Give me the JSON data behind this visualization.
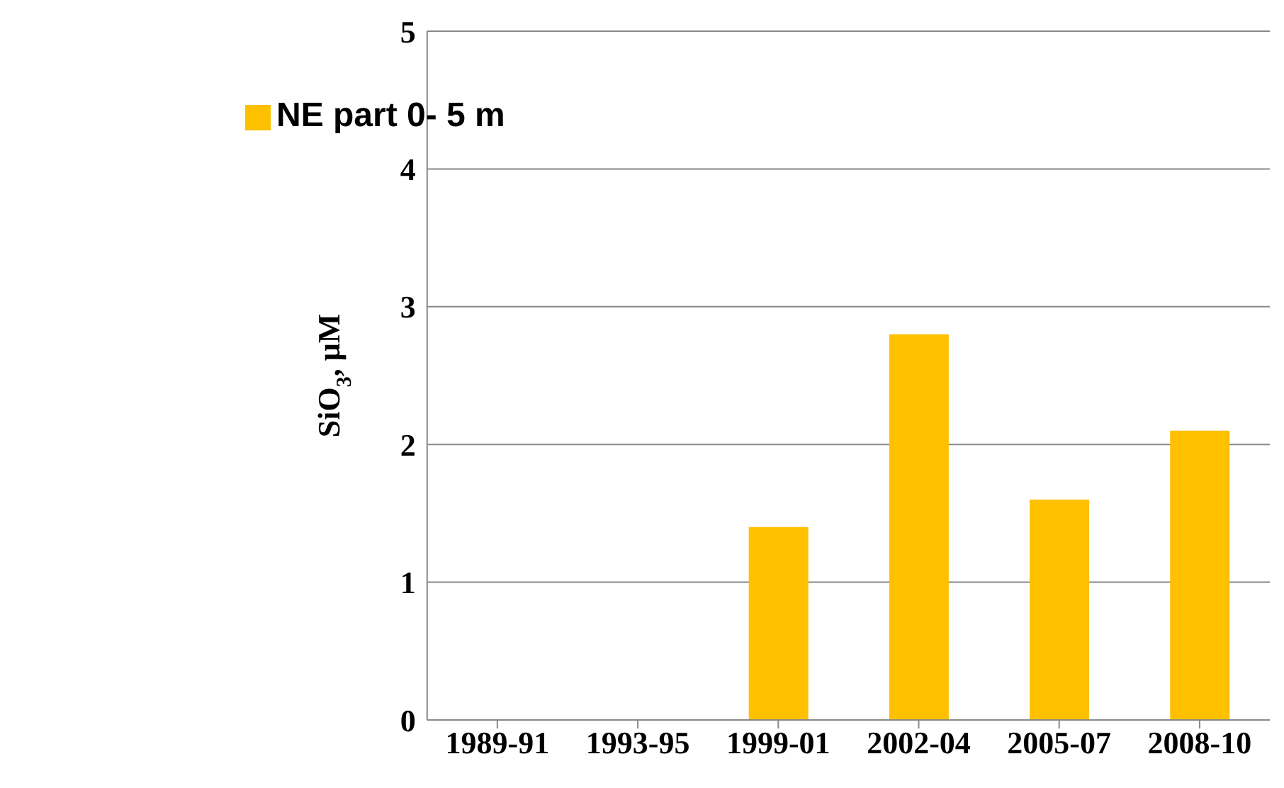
{
  "chart_data": {
    "type": "bar",
    "ylabel": "SiO$_{3}$, μM",
    "categories": [
      "1989-91",
      "1993-95",
      "1999-01",
      "2002-04",
      "2005-07",
      "2008-10"
    ],
    "series": [
      {
        "name": "NE part 0- 5 m",
        "color": "#ffc000",
        "values": [
          null,
          null,
          1.4,
          2.8,
          1.6,
          2.1
        ]
      }
    ],
    "ylim": [
      0,
      5
    ],
    "yticks": [
      0,
      1,
      2,
      3,
      4,
      5
    ],
    "grid": "y",
    "legend": "top left"
  }
}
